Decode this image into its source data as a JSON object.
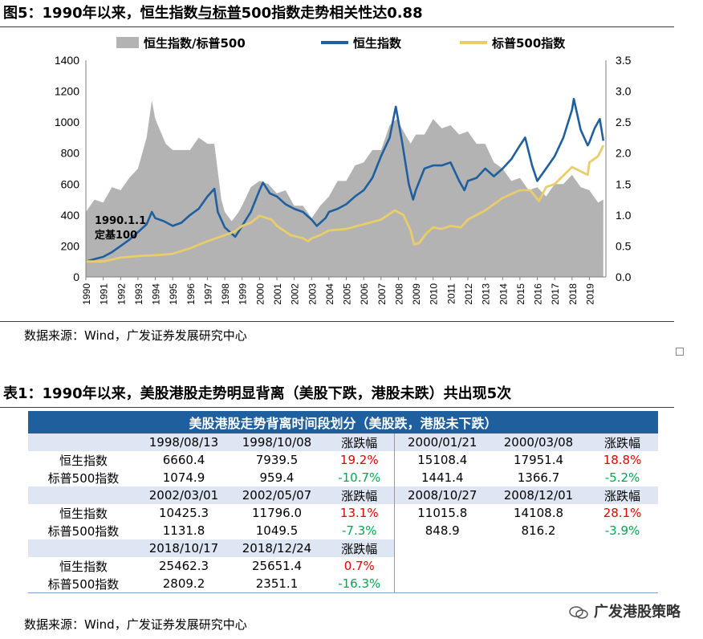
{
  "figure": {
    "title_prefix": "图5：1990年以来，恒生指数",
    "title_underlined": "与标普",
    "title_suffix": "500指数走势相关性达0.88",
    "source": "数据来源：Wind，广发证券发展研究中心"
  },
  "chart_data": {
    "type": "area+line",
    "title": "图5：1990年以来，恒生指数与标普500指数走势相关性达0.88",
    "legend": [
      "恒生指数/标普500",
      "恒生指数",
      "标普500指数"
    ],
    "legend_position": "top",
    "x_ticks": [
      "1990",
      "1991",
      "1992",
      "1993",
      "1994",
      "1995",
      "1996",
      "1997",
      "1998",
      "1999",
      "2000",
      "2001",
      "2002",
      "2003",
      "2004",
      "2005",
      "2006",
      "2007",
      "2008",
      "2009",
      "2010",
      "2011",
      "2012",
      "2013",
      "2014",
      "2015",
      "2016",
      "2017",
      "2018",
      "2019"
    ],
    "left_axis": {
      "ticks": [
        "0",
        "200",
        "400",
        "600",
        "800",
        "1000",
        "1200",
        "1400"
      ],
      "range": [
        0,
        1400
      ]
    },
    "right_axis": {
      "ticks": [
        "0.0",
        "0.5",
        "1.0",
        "1.5",
        "2.0",
        "2.5",
        "3.0",
        "3.5"
      ],
      "range": [
        0,
        3.5
      ]
    },
    "annotation": {
      "line1": "1990.1.1",
      "line2": "定基100"
    },
    "series": [
      {
        "name": "恒生指数/标普500",
        "axis": "right",
        "color": "#b3b3b3",
        "x": [
          1990.0,
          1990.5,
          1991.0,
          1991.5,
          1992.0,
          1992.5,
          1993.0,
          1993.5,
          1993.8,
          1994.0,
          1994.3,
          1994.6,
          1995.0,
          1995.5,
          1996.0,
          1996.5,
          1997.0,
          1997.4,
          1997.8,
          1998.0,
          1998.4,
          1998.8,
          1999.0,
          1999.5,
          2000.0,
          2000.5,
          2001.0,
          2001.5,
          2002.0,
          2002.5,
          2003.0,
          2003.5,
          2004.0,
          2004.5,
          2005.0,
          2005.5,
          2006.0,
          2006.5,
          2007.0,
          2007.5,
          2007.9,
          2008.3,
          2008.7,
          2009.0,
          2009.5,
          2010.0,
          2010.5,
          2011.0,
          2011.5,
          2012.0,
          2012.5,
          2013.0,
          2013.5,
          2014.0,
          2014.5,
          2015.0,
          2015.5,
          2016.0,
          2016.5,
          2017.0,
          2017.5,
          2018.0,
          2018.5,
          2019.0,
          2019.5,
          2019.8
        ],
        "values": [
          1.1,
          1.2,
          1.25,
          1.4,
          1.45,
          1.55,
          1.8,
          2.2,
          2.9,
          2.5,
          2.4,
          2.1,
          2.1,
          2.0,
          2.1,
          2.2,
          2.2,
          2.1,
          1.3,
          1.0,
          0.95,
          1.0,
          1.2,
          1.4,
          1.6,
          1.45,
          1.4,
          1.35,
          1.2,
          1.1,
          1.0,
          1.1,
          1.35,
          1.5,
          1.6,
          1.75,
          1.9,
          2.0,
          2.1,
          2.4,
          2.6,
          2.3,
          2.2,
          2.25,
          2.35,
          2.5,
          2.45,
          2.4,
          2.35,
          2.3,
          2.2,
          2.1,
          1.9,
          1.7,
          1.6,
          1.55,
          1.45,
          1.4,
          1.35,
          1.45,
          1.55,
          1.6,
          1.5,
          1.35,
          1.25,
          1.2
        ]
      },
      {
        "name": "恒生指数",
        "axis": "left",
        "color": "#1f5f9e",
        "x": [
          1990.0,
          1990.5,
          1991.0,
          1991.5,
          1992.0,
          1992.5,
          1993.0,
          1993.5,
          1993.8,
          1994.0,
          1994.5,
          1995.0,
          1995.5,
          1996.0,
          1996.5,
          1997.0,
          1997.4,
          1997.6,
          1998.0,
          1998.6,
          1999.0,
          1999.5,
          2000.0,
          2000.2,
          2000.6,
          2001.0,
          2001.5,
          2002.0,
          2002.5,
          2003.0,
          2003.3,
          2003.8,
          2004.0,
          2004.5,
          2005.0,
          2005.5,
          2006.0,
          2006.5,
          2007.0,
          2007.5,
          2007.85,
          2008.2,
          2008.6,
          2008.85,
          2009.0,
          2009.5,
          2010.0,
          2010.5,
          2011.0,
          2011.5,
          2011.8,
          2012.0,
          2012.5,
          2013.0,
          2013.5,
          2014.0,
          2014.5,
          2015.0,
          2015.3,
          2015.7,
          2016.0,
          2016.5,
          2017.0,
          2017.5,
          2018.0,
          2018.1,
          2018.5,
          2018.9,
          2019.0,
          2019.3,
          2019.6,
          2019.8
        ],
        "values": [
          100,
          115,
          130,
          160,
          200,
          240,
          290,
          340,
          420,
          380,
          360,
          330,
          350,
          400,
          440,
          520,
          570,
          420,
          320,
          260,
          330,
          420,
          560,
          610,
          540,
          520,
          470,
          440,
          420,
          370,
          330,
          380,
          420,
          440,
          470,
          520,
          560,
          640,
          780,
          900,
          1100,
          880,
          600,
          500,
          560,
          700,
          720,
          720,
          740,
          620,
          560,
          620,
          640,
          700,
          650,
          700,
          760,
          850,
          900,
          720,
          620,
          700,
          780,
          900,
          1080,
          1150,
          950,
          850,
          870,
          960,
          1020,
          880
        ]
      },
      {
        "name": "标普500指数",
        "axis": "left",
        "color": "#e8cd6a",
        "x": [
          1990.0,
          1991.0,
          1992.0,
          1993.0,
          1994.0,
          1995.0,
          1996.0,
          1997.0,
          1998.0,
          1998.6,
          1999.0,
          1999.5,
          2000.0,
          2000.7,
          2001.0,
          2001.8,
          2002.5,
          2002.8,
          2003.0,
          2003.5,
          2004.0,
          2005.0,
          2006.0,
          2007.0,
          2007.8,
          2008.3,
          2008.7,
          2008.9,
          2009.2,
          2009.6,
          2010.0,
          2010.5,
          2011.0,
          2011.6,
          2012.0,
          2013.0,
          2014.0,
          2015.0,
          2015.6,
          2016.1,
          2016.5,
          2017.0,
          2018.0,
          2018.9,
          2019.0,
          2019.5,
          2019.8
        ],
        "values": [
          100,
          100,
          125,
          135,
          140,
          150,
          185,
          230,
          270,
          295,
          330,
          350,
          395,
          370,
          330,
          270,
          250,
          230,
          250,
          270,
          300,
          310,
          340,
          370,
          430,
          400,
          300,
          210,
          220,
          280,
          320,
          310,
          330,
          320,
          370,
          430,
          510,
          560,
          560,
          490,
          580,
          600,
          710,
          660,
          740,
          780,
          850
        ]
      }
    ]
  },
  "table": {
    "title": "表1：1990年以来，美股港股走势明显背离（美股下跌，港股未跌）共出现5次",
    "banner": "美股港股走势背离时间段划分（美股跌，港股未下跌）",
    "blocks": [
      {
        "left": {
          "start": "1998/08/13",
          "end": "1998/10/08",
          "change_header": "涨跌幅",
          "hsi": {
            "label": "恒生指数",
            "start": "6660.4",
            "end": "7939.5",
            "change": "19.2%"
          },
          "spx": {
            "label": "标普500指数",
            "start": "1074.9",
            "end": "959.4",
            "change": "-10.7%"
          }
        },
        "right": {
          "start": "2000/01/21",
          "end": "2000/03/08",
          "change_header": "涨跌幅",
          "hsi": {
            "start": "15108.4",
            "end": "17951.4",
            "change": "18.8%"
          },
          "spx": {
            "start": "1441.4",
            "end": "1366.7",
            "change": "-5.2%"
          }
        }
      },
      {
        "left": {
          "start": "2002/03/01",
          "end": "2002/05/07",
          "change_header": "涨跌幅",
          "hsi": {
            "label": "恒生指数",
            "start": "10425.3",
            "end": "11796.0",
            "change": "13.1%"
          },
          "spx": {
            "label": "标普500指数",
            "start": "1131.8",
            "end": "1049.5",
            "change": "-7.3%"
          }
        },
        "right": {
          "start": "2008/10/27",
          "end": "2008/12/01",
          "change_header": "涨跌幅",
          "hsi": {
            "start": "11015.8",
            "end": "14108.8",
            "change": "28.1%"
          },
          "spx": {
            "start": "848.9",
            "end": "816.2",
            "change": "-3.9%"
          }
        }
      },
      {
        "left": {
          "start": "2018/10/17",
          "end": "2018/12/24",
          "change_header": "涨跌幅",
          "hsi": {
            "label": "恒生指数",
            "start": "25462.3",
            "end": "25651.4",
            "change": "0.7%"
          },
          "spx": {
            "label": "标普500指数",
            "start": "2809.2",
            "end": "2351.1",
            "change": "-16.3%"
          }
        }
      }
    ],
    "source": "数据来源：Wind，广发证券发展研究中心"
  },
  "watermark": "广发港股策略",
  "colors": {
    "hsi": "#1f5f9e",
    "spx": "#e8cd6a",
    "ratio": "#b3b3b3",
    "up": "#e60000",
    "down": "#00a651",
    "banner": "#1f5f9e"
  }
}
